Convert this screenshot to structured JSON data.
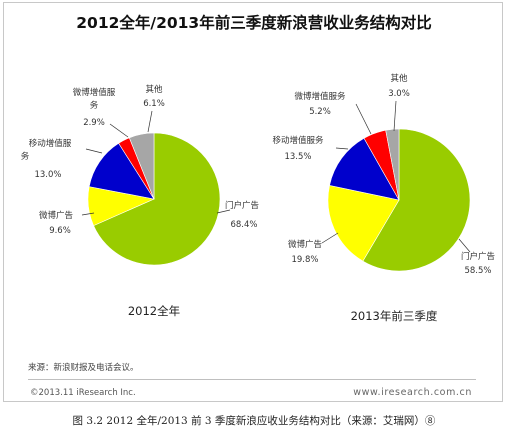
{
  "title": "2012全年/2013年前三季度新浪营收业务结构对比",
  "chart_data": [
    {
      "type": "pie",
      "caption": "2012全年",
      "slices": [
        {
          "name": "门户广告",
          "value": 68.4,
          "label": "68.4%",
          "color": "#99cc00"
        },
        {
          "name": "微博广告",
          "value": 9.6,
          "label": "9.6%",
          "color": "#ffff00"
        },
        {
          "name": "移动增值服务",
          "value": 13.0,
          "label": "13.0%",
          "color": "#0000cc"
        },
        {
          "name": "微博增值服务",
          "value": 2.9,
          "label": "2.9%",
          "color": "#ff0000"
        },
        {
          "name": "其他",
          "value": 6.1,
          "label": "6.1%",
          "color": "#a6a6a6"
        }
      ]
    },
    {
      "type": "pie",
      "caption": "2013年前三季度",
      "slices": [
        {
          "name": "门户广告",
          "value": 58.5,
          "label": "58.5%",
          "color": "#99cc00"
        },
        {
          "name": "微博广告",
          "value": 19.8,
          "label": "19.8%",
          "color": "#ffff00"
        },
        {
          "name": "移动增值服务",
          "value": 13.5,
          "label": "13.5%",
          "color": "#0000cc"
        },
        {
          "name": "微博增值服务",
          "value": 5.2,
          "label": "5.2%",
          "color": "#ff0000"
        },
        {
          "name": "其他",
          "value": 3.0,
          "label": "3.0%",
          "color": "#a6a6a6"
        }
      ]
    }
  ],
  "source": "来源：新浪财报及电话会议。",
  "copyright": "©2013.11 iResearch Inc.",
  "website": "www.iresearch.com.cn",
  "caption": "图 3.2 2012 全年/2013 前 3 季度新浪应收业务结构对比（来源：艾瑞网）⑧"
}
